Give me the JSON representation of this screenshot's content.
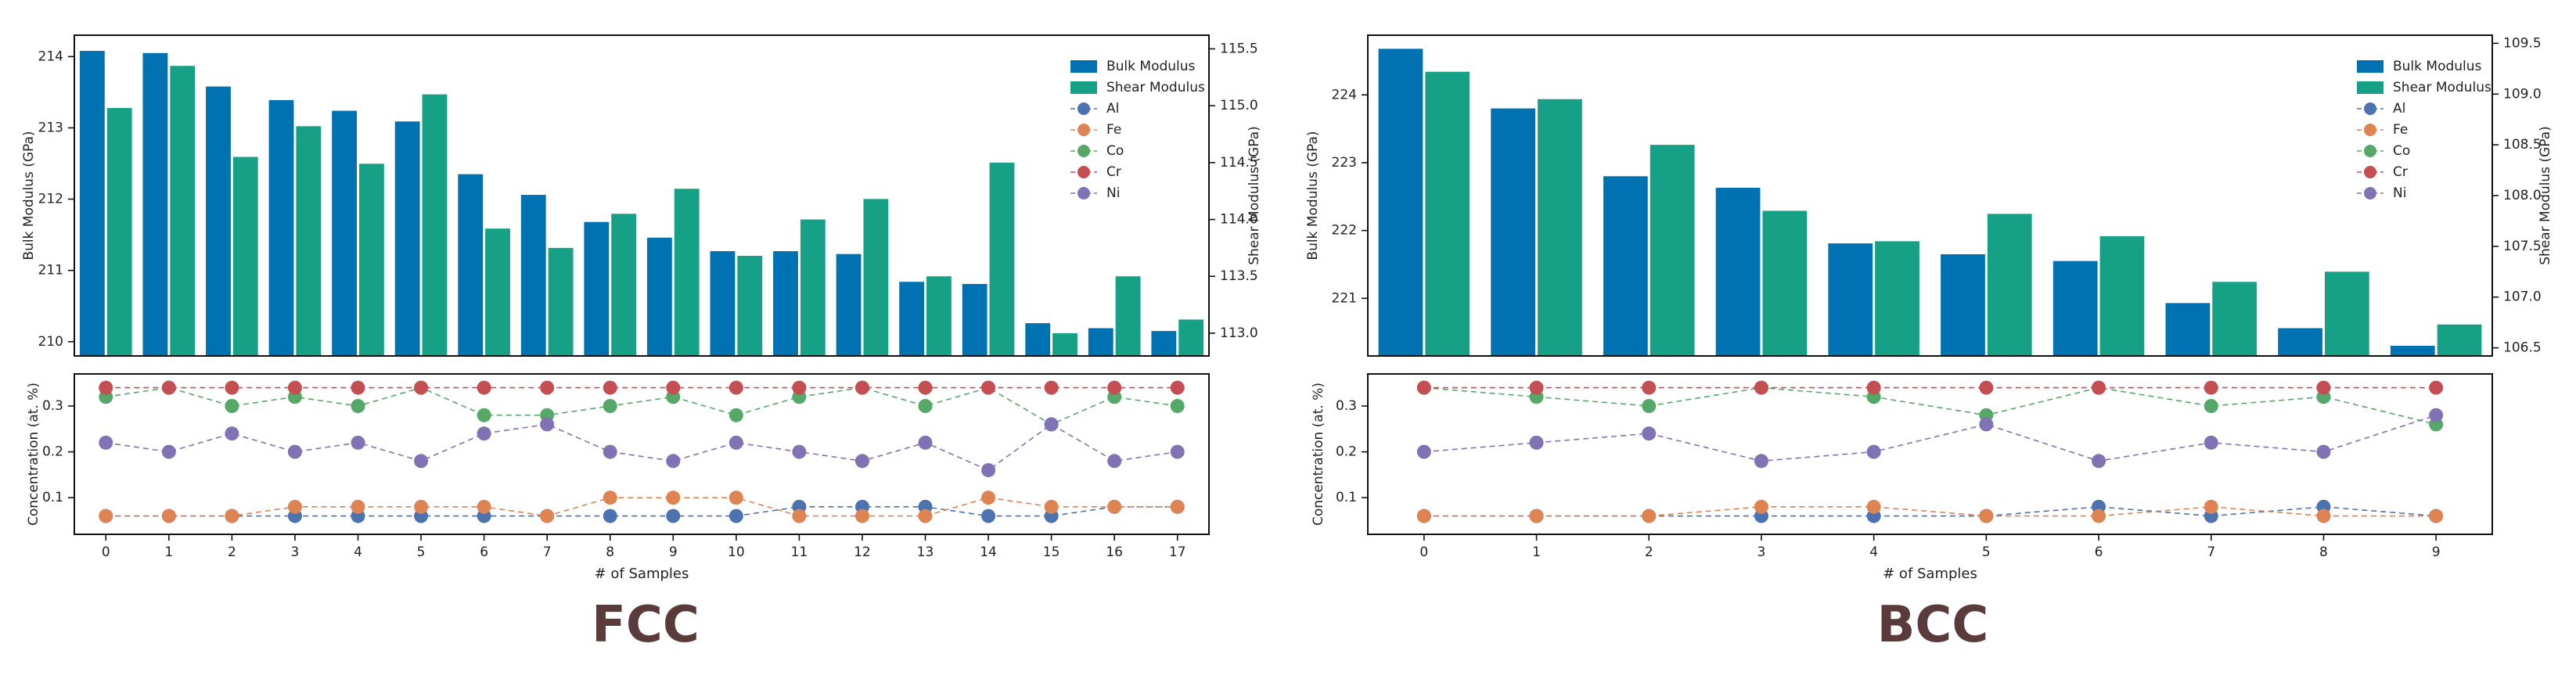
{
  "colors": {
    "bulk": "#0072b2",
    "shear": "#16a085",
    "Al": "#4c72b0",
    "Fe": "#dd8452",
    "Co": "#55a868",
    "Cr": "#c44e52",
    "Ni": "#8172b3"
  },
  "chart_data": [
    {
      "type": "bar",
      "panel_caption": "FCC",
      "categories": [
        "0",
        "1",
        "2",
        "3",
        "4",
        "5",
        "6",
        "7",
        "8",
        "9",
        "10",
        "11",
        "12",
        "13",
        "14",
        "15",
        "16",
        "17"
      ],
      "ylabel": "Bulk Modulus (GPa)",
      "ylabel_right": "Shear Modulus (GPa)",
      "ylim": [
        209.8,
        214.3
      ],
      "ylim_right": [
        112.8,
        115.62
      ],
      "yticks": [
        210,
        211,
        212,
        213,
        214
      ],
      "yticks_right": [
        113.0,
        113.5,
        114.0,
        114.5,
        115.0,
        115.5
      ],
      "series": [
        {
          "name": "Bulk Modulus",
          "axis": "left",
          "values": [
            214.08,
            214.05,
            213.58,
            213.39,
            213.24,
            213.09,
            212.35,
            212.06,
            211.68,
            211.46,
            211.27,
            211.27,
            211.23,
            210.84,
            210.81,
            210.26,
            210.19,
            210.15
          ]
        },
        {
          "name": "Shear Modulus",
          "axis": "right",
          "values": [
            114.98,
            115.35,
            114.55,
            114.82,
            114.49,
            115.1,
            113.92,
            113.75,
            114.05,
            114.27,
            113.68,
            114.0,
            114.18,
            113.5,
            114.5,
            113.0,
            113.5,
            113.12
          ]
        }
      ],
      "legend": [
        "Bulk Modulus",
        "Shear Modulus",
        "Al",
        "Fe",
        "Co",
        "Cr",
        "Ni"
      ],
      "legend_position": "top-right",
      "bottom": {
        "type": "line",
        "xlabel": "# of Samples",
        "ylabel": "Concentration (at. %)",
        "ylim": [
          0.02,
          0.37
        ],
        "yticks": [
          0.1,
          0.2,
          0.3
        ],
        "series": [
          {
            "name": "Al",
            "values": [
              0.06,
              0.06,
              0.06,
              0.06,
              0.06,
              0.06,
              0.06,
              0.06,
              0.06,
              0.06,
              0.06,
              0.08,
              0.08,
              0.08,
              0.06,
              0.06,
              0.08,
              0.08
            ]
          },
          {
            "name": "Fe",
            "values": [
              0.06,
              0.06,
              0.06,
              0.08,
              0.08,
              0.08,
              0.08,
              0.06,
              0.1,
              0.1,
              0.1,
              0.06,
              0.06,
              0.06,
              0.1,
              0.08,
              0.08,
              0.08
            ]
          },
          {
            "name": "Co",
            "values": [
              0.32,
              0.34,
              0.3,
              0.32,
              0.3,
              0.34,
              0.28,
              0.28,
              0.3,
              0.32,
              0.28,
              0.32,
              0.34,
              0.3,
              0.34,
              0.26,
              0.32,
              0.3
            ]
          },
          {
            "name": "Cr",
            "values": [
              0.34,
              0.34,
              0.34,
              0.34,
              0.34,
              0.34,
              0.34,
              0.34,
              0.34,
              0.34,
              0.34,
              0.34,
              0.34,
              0.34,
              0.34,
              0.34,
              0.34,
              0.34
            ]
          },
          {
            "name": "Ni",
            "values": [
              0.22,
              0.2,
              0.24,
              0.2,
              0.22,
              0.18,
              0.24,
              0.26,
              0.2,
              0.18,
              0.22,
              0.2,
              0.18,
              0.22,
              0.16,
              0.26,
              0.18,
              0.2
            ]
          }
        ]
      }
    },
    {
      "type": "bar",
      "panel_caption": "BCC",
      "categories": [
        "0",
        "1",
        "2",
        "3",
        "4",
        "5",
        "6",
        "7",
        "8",
        "9"
      ],
      "ylabel": "Bulk Modulus (GPa)",
      "ylabel_right": "Shear Modulus (GPa)",
      "ylim": [
        220.15,
        224.88
      ],
      "ylim_right": [
        106.42,
        109.58
      ],
      "yticks": [
        221,
        222,
        223,
        224
      ],
      "yticks_right": [
        106.5,
        107.0,
        107.5,
        108.0,
        108.5,
        109.0,
        109.5
      ],
      "series": [
        {
          "name": "Bulk Modulus",
          "axis": "left",
          "values": [
            224.68,
            223.8,
            222.8,
            222.63,
            221.81,
            221.65,
            221.55,
            220.93,
            220.56,
            220.3
          ]
        },
        {
          "name": "Shear Modulus",
          "axis": "right",
          "values": [
            109.22,
            108.95,
            108.5,
            107.85,
            107.55,
            107.82,
            107.6,
            107.15,
            107.25,
            106.73
          ]
        }
      ],
      "legend": [
        "Bulk Modulus",
        "Shear Modulus",
        "Al",
        "Fe",
        "Co",
        "Cr",
        "Ni"
      ],
      "legend_position": "top-right",
      "bottom": {
        "type": "line",
        "xlabel": "# of Samples",
        "ylabel": "Concentration (at. %)",
        "ylim": [
          0.02,
          0.37
        ],
        "yticks": [
          0.1,
          0.2,
          0.3
        ],
        "series": [
          {
            "name": "Al",
            "values": [
              0.06,
              0.06,
              0.06,
              0.06,
              0.06,
              0.06,
              0.08,
              0.06,
              0.08,
              0.06
            ]
          },
          {
            "name": "Fe",
            "values": [
              0.06,
              0.06,
              0.06,
              0.08,
              0.08,
              0.06,
              0.06,
              0.08,
              0.06,
              0.06
            ]
          },
          {
            "name": "Co",
            "values": [
              0.34,
              0.32,
              0.3,
              0.34,
              0.32,
              0.28,
              0.34,
              0.3,
              0.32,
              0.26
            ]
          },
          {
            "name": "Cr",
            "values": [
              0.34,
              0.34,
              0.34,
              0.34,
              0.34,
              0.34,
              0.34,
              0.34,
              0.34,
              0.34
            ]
          },
          {
            "name": "Ni",
            "values": [
              0.2,
              0.22,
              0.24,
              0.18,
              0.2,
              0.26,
              0.18,
              0.22,
              0.2,
              0.28
            ]
          }
        ]
      }
    }
  ]
}
